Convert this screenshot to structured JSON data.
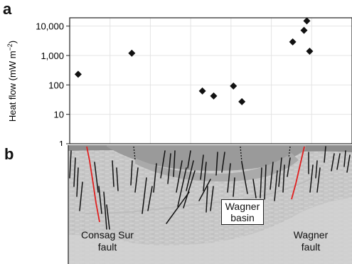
{
  "panels": {
    "a": "a",
    "b": "b"
  },
  "chart_data": {
    "type": "scatter",
    "title": "",
    "xlabel": "",
    "ylabel": "Heat flow (mW m−2)",
    "yscale": "log",
    "ylim": [
      1,
      20000
    ],
    "yticks": [
      1,
      10,
      100,
      1000,
      10000
    ],
    "ytick_labels": [
      "1",
      "10",
      "100",
      "1,000",
      "10,000"
    ],
    "grid": true,
    "marker": "diamond",
    "series": [
      {
        "values": [
          {
            "x": 0.03,
            "y": 230
          },
          {
            "x": 0.22,
            "y": 1200
          },
          {
            "x": 0.47,
            "y": 62
          },
          {
            "x": 0.51,
            "y": 42
          },
          {
            "x": 0.58,
            "y": 92
          },
          {
            "x": 0.61,
            "y": 27
          },
          {
            "x": 0.79,
            "y": 2900
          },
          {
            "x": 0.83,
            "y": 7200
          },
          {
            "x": 0.84,
            "y": 15000
          },
          {
            "x": 0.85,
            "y": 1400
          }
        ]
      }
    ]
  },
  "section": {
    "basin_label": [
      "Wagner",
      "basin"
    ],
    "left_fault_label": [
      "Consag Sur",
      "fault"
    ],
    "right_fault_label": [
      "Wagner",
      "fault"
    ],
    "colors": {
      "fault": "#e01f1f",
      "faults_black": "#111111",
      "water": "#9a9a9a",
      "deep_water": "#7d7d7d",
      "sediment": "#c9c9c9",
      "basin_fill": "#b3b3b3"
    }
  }
}
